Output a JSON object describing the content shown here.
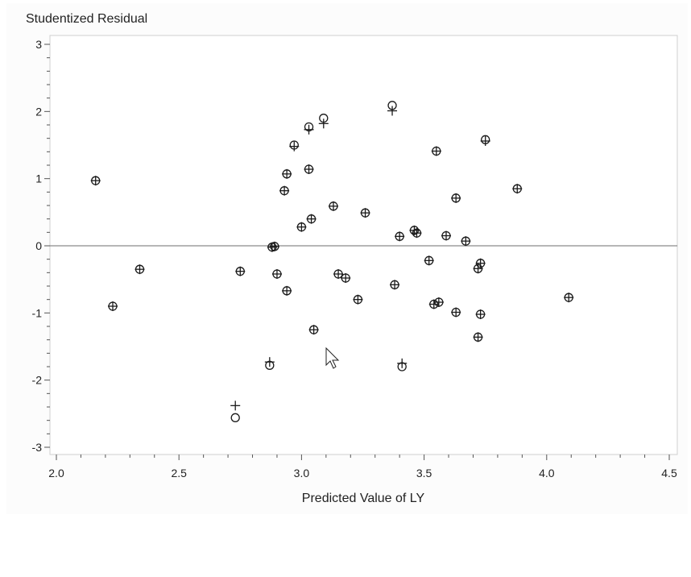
{
  "chart_data": {
    "type": "scatter",
    "ylabel": "Studentized Residual",
    "xlabel": "Predicted Value of LY",
    "xlim": [
      2.0,
      4.5
    ],
    "ylim": [
      -3.0,
      3.0
    ],
    "x_ticks": [
      "2.0",
      "2.5",
      "3.0",
      "3.5",
      "4.0",
      "4.5"
    ],
    "y_ticks": [
      "3",
      "2",
      "1",
      "0",
      "-1",
      "-2",
      "-3"
    ],
    "reference_line_y": 0,
    "grid": false,
    "series": [
      {
        "marker": "circle",
        "points": [
          [
            2.16,
            0.97
          ],
          [
            2.23,
            -0.9
          ],
          [
            2.34,
            -0.35
          ],
          [
            2.73,
            -2.56
          ],
          [
            2.75,
            -0.38
          ],
          [
            2.87,
            -1.78
          ],
          [
            2.88,
            -0.02
          ],
          [
            2.89,
            -0.01
          ],
          [
            2.9,
            -0.42
          ],
          [
            2.93,
            0.82
          ],
          [
            2.94,
            -0.67
          ],
          [
            2.94,
            1.07
          ],
          [
            2.97,
            1.5
          ],
          [
            3.0,
            0.28
          ],
          [
            3.03,
            1.77
          ],
          [
            3.03,
            1.14
          ],
          [
            3.04,
            0.4
          ],
          [
            3.05,
            -1.25
          ],
          [
            3.09,
            1.9
          ],
          [
            3.13,
            0.59
          ],
          [
            3.15,
            -0.42
          ],
          [
            3.18,
            -0.48
          ],
          [
            3.23,
            -0.8
          ],
          [
            3.26,
            0.49
          ],
          [
            3.37,
            2.09
          ],
          [
            3.38,
            -0.58
          ],
          [
            3.4,
            0.14
          ],
          [
            3.41,
            -1.8
          ],
          [
            3.46,
            0.23
          ],
          [
            3.47,
            0.19
          ],
          [
            3.52,
            -0.22
          ],
          [
            3.54,
            -0.87
          ],
          [
            3.55,
            1.41
          ],
          [
            3.56,
            -0.84
          ],
          [
            3.59,
            0.15
          ],
          [
            3.63,
            0.71
          ],
          [
            3.63,
            -0.99
          ],
          [
            3.67,
            0.07
          ],
          [
            3.72,
            -0.34
          ],
          [
            3.72,
            -1.36
          ],
          [
            3.73,
            -0.26
          ],
          [
            3.73,
            -1.02
          ],
          [
            3.75,
            1.58
          ],
          [
            3.88,
            0.85
          ],
          [
            4.09,
            -0.77
          ]
        ]
      },
      {
        "marker": "plus",
        "points": [
          [
            2.16,
            0.97
          ],
          [
            2.23,
            -0.9
          ],
          [
            2.34,
            -0.35
          ],
          [
            2.73,
            -2.38
          ],
          [
            2.75,
            -0.38
          ],
          [
            2.87,
            -1.73
          ],
          [
            2.88,
            -0.02
          ],
          [
            2.89,
            -0.01
          ],
          [
            2.9,
            -0.42
          ],
          [
            2.93,
            0.82
          ],
          [
            2.94,
            -0.67
          ],
          [
            2.94,
            1.07
          ],
          [
            2.97,
            1.48
          ],
          [
            3.0,
            0.28
          ],
          [
            3.03,
            1.73
          ],
          [
            3.03,
            1.14
          ],
          [
            3.04,
            0.4
          ],
          [
            3.05,
            -1.25
          ],
          [
            3.09,
            1.82
          ],
          [
            3.13,
            0.59
          ],
          [
            3.15,
            -0.42
          ],
          [
            3.18,
            -0.48
          ],
          [
            3.23,
            -0.8
          ],
          [
            3.26,
            0.49
          ],
          [
            3.37,
            2.01
          ],
          [
            3.38,
            -0.58
          ],
          [
            3.4,
            0.14
          ],
          [
            3.41,
            -1.75
          ],
          [
            3.46,
            0.23
          ],
          [
            3.47,
            0.19
          ],
          [
            3.52,
            -0.22
          ],
          [
            3.54,
            -0.87
          ],
          [
            3.55,
            1.41
          ],
          [
            3.56,
            -0.84
          ],
          [
            3.59,
            0.15
          ],
          [
            3.63,
            0.71
          ],
          [
            3.63,
            -0.99
          ],
          [
            3.67,
            0.07
          ],
          [
            3.72,
            -0.34
          ],
          [
            3.72,
            -1.36
          ],
          [
            3.73,
            -0.26
          ],
          [
            3.73,
            -1.02
          ],
          [
            3.75,
            1.56
          ],
          [
            3.88,
            0.85
          ],
          [
            4.09,
            -0.77
          ]
        ]
      }
    ]
  }
}
